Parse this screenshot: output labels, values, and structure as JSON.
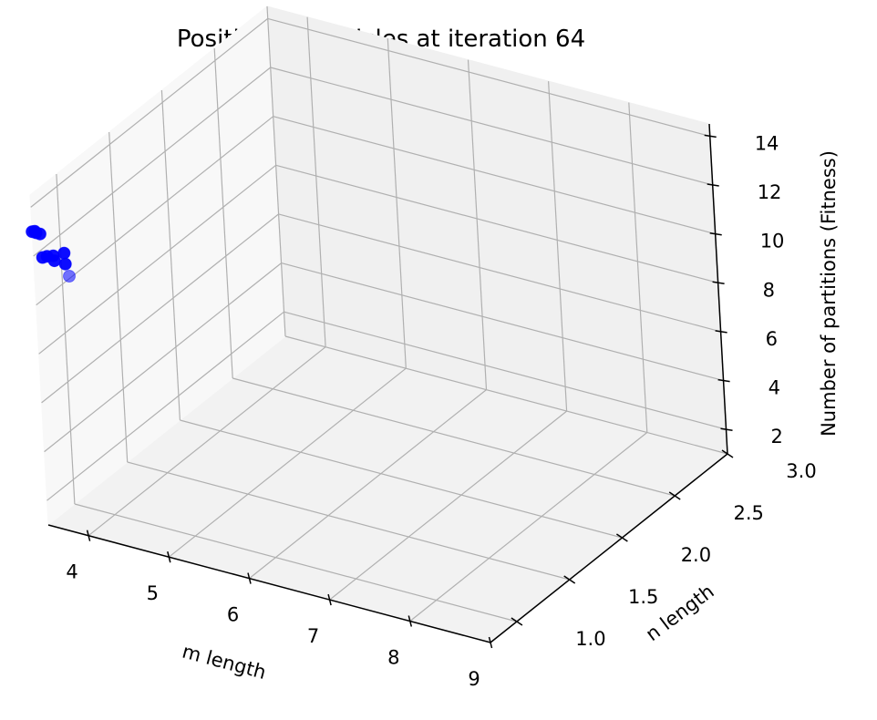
{
  "chart_data": {
    "type": "scatter3d",
    "title": "Position of particles at iteration 64",
    "xlabel": "m length",
    "ylabel": "n length",
    "zlabel": "Number of partitions (Fitness)",
    "xlim": [
      3.5,
      9.0
    ],
    "ylim": [
      0.75,
      3.0
    ],
    "zlim": [
      1.0,
      14.5
    ],
    "x_ticks": [
      4,
      5,
      6,
      7,
      8,
      9
    ],
    "y_ticks": [
      1.0,
      1.5,
      2.0,
      2.5,
      3.0
    ],
    "z_ticks": [
      2,
      4,
      6,
      8,
      10,
      12,
      14
    ],
    "x_tick_labels": [
      "4",
      "5",
      "6",
      "7",
      "8",
      "9"
    ],
    "y_tick_labels": [
      "1.0",
      "1.5",
      "2.0",
      "2.5",
      "3.0"
    ],
    "z_tick_labels": [
      "2",
      "4",
      "6",
      "8",
      "10",
      "12",
      "14"
    ],
    "grid": true,
    "marker_color": "#0000ff",
    "points": [
      {
        "x": 3.5,
        "y": 0.75,
        "z": 13.0
      },
      {
        "x": 3.52,
        "y": 0.76,
        "z": 13.0
      },
      {
        "x": 3.55,
        "y": 0.75,
        "z": 13.0
      },
      {
        "x": 3.57,
        "y": 0.77,
        "z": 12.9
      },
      {
        "x": 3.6,
        "y": 0.76,
        "z": 12.0
      },
      {
        "x": 3.63,
        "y": 0.78,
        "z": 12.0
      },
      {
        "x": 3.68,
        "y": 0.8,
        "z": 12.0
      },
      {
        "x": 3.72,
        "y": 0.78,
        "z": 11.9
      },
      {
        "x": 3.75,
        "y": 0.85,
        "z": 12.0
      },
      {
        "x": 3.8,
        "y": 0.82,
        "z": 11.7
      },
      {
        "x": 3.8,
        "y": 0.85,
        "z": 11.1
      }
    ]
  }
}
